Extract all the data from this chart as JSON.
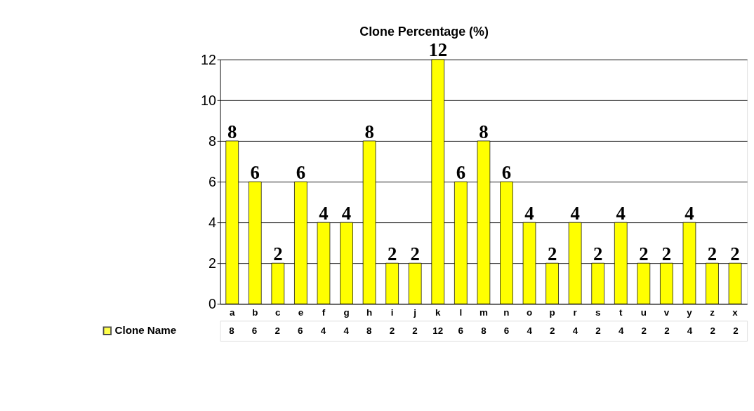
{
  "chart_data": {
    "type": "bar",
    "title": "Clone Percentage (%)",
    "categories": [
      "a",
      "b",
      "c",
      "e",
      "f",
      "g",
      "h",
      "i",
      "j",
      "k",
      "l",
      "m",
      "n",
      "o",
      "p",
      "r",
      "s",
      "t",
      "u",
      "v",
      "y",
      "z",
      "x"
    ],
    "series": [
      {
        "name": "Clone Name",
        "color": "#ffff00",
        "values": [
          8,
          6,
          2,
          6,
          4,
          4,
          8,
          2,
          2,
          12,
          6,
          8,
          6,
          4,
          2,
          4,
          2,
          4,
          2,
          2,
          4,
          2,
          2
        ],
        "value_labels": [
          "8",
          "6",
          "2",
          "6",
          "4",
          "4",
          "8",
          "2",
          "2",
          "12",
          "6",
          "8",
          "6",
          "4",
          "2",
          "4",
          "2",
          "4",
          "2",
          "2",
          "4",
          "2",
          "2"
        ]
      }
    ],
    "annotations": [
      "8",
      "6",
      "2",
      "6",
      "4",
      "4",
      "8",
      "2",
      "2",
      "12",
      "6",
      "8",
      "6",
      "4",
      "2",
      "4",
      "2",
      "4",
      "2",
      "2",
      "4",
      "2",
      "2"
    ],
    "ylim": [
      0,
      12
    ],
    "yticks": [
      0,
      2,
      4,
      6,
      8,
      10,
      12
    ],
    "grid": "y",
    "data_labels": true,
    "legend": "bottom left"
  }
}
